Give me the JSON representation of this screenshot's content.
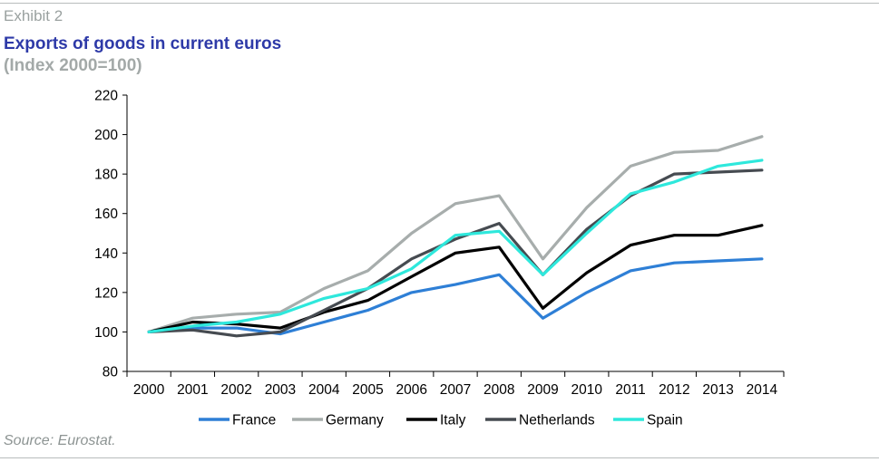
{
  "header": {
    "exhibit": "Exhibit 2",
    "title": "Exports of goods in current euros",
    "subtitle": "(Index 2000=100)"
  },
  "footer": {
    "source": "Source: Eurostat."
  },
  "chart_data": {
    "type": "line",
    "title": "Exports of goods in current euros",
    "subtitle": "(Index 2000=100)",
    "xlabel": "",
    "ylabel": "",
    "x": [
      "2000",
      "2001",
      "2002",
      "2003",
      "2004",
      "2005",
      "2006",
      "2007",
      "2008",
      "2009",
      "2010",
      "2011",
      "2012",
      "2013",
      "2014"
    ],
    "ylim": [
      80,
      220
    ],
    "yticks": [
      80,
      100,
      120,
      140,
      160,
      180,
      200,
      220
    ],
    "grid": false,
    "legend_position": "bottom",
    "series": [
      {
        "name": "France",
        "color": "#2e7fd6",
        "values": [
          100,
          102,
          102,
          99,
          105,
          111,
          120,
          124,
          129,
          107,
          120,
          131,
          135,
          136,
          137
        ]
      },
      {
        "name": "Germany",
        "color": "#a7adac",
        "values": [
          100,
          107,
          109,
          110,
          122,
          131,
          150,
          165,
          169,
          137,
          163,
          184,
          191,
          192,
          199
        ]
      },
      {
        "name": "Italy",
        "color": "#000000",
        "values": [
          100,
          105,
          104,
          102,
          110,
          116,
          128,
          140,
          143,
          112,
          130,
          144,
          149,
          149,
          154
        ]
      },
      {
        "name": "Netherlands",
        "color": "#464b51",
        "values": [
          100,
          101,
          98,
          100,
          111,
          122,
          137,
          147,
          155,
          129,
          152,
          169,
          180,
          181,
          182
        ]
      },
      {
        "name": "Spain",
        "color": "#2ee8dc",
        "values": [
          100,
          103,
          105,
          109,
          117,
          122,
          132,
          149,
          151,
          129,
          150,
          170,
          176,
          184,
          187
        ]
      }
    ]
  }
}
